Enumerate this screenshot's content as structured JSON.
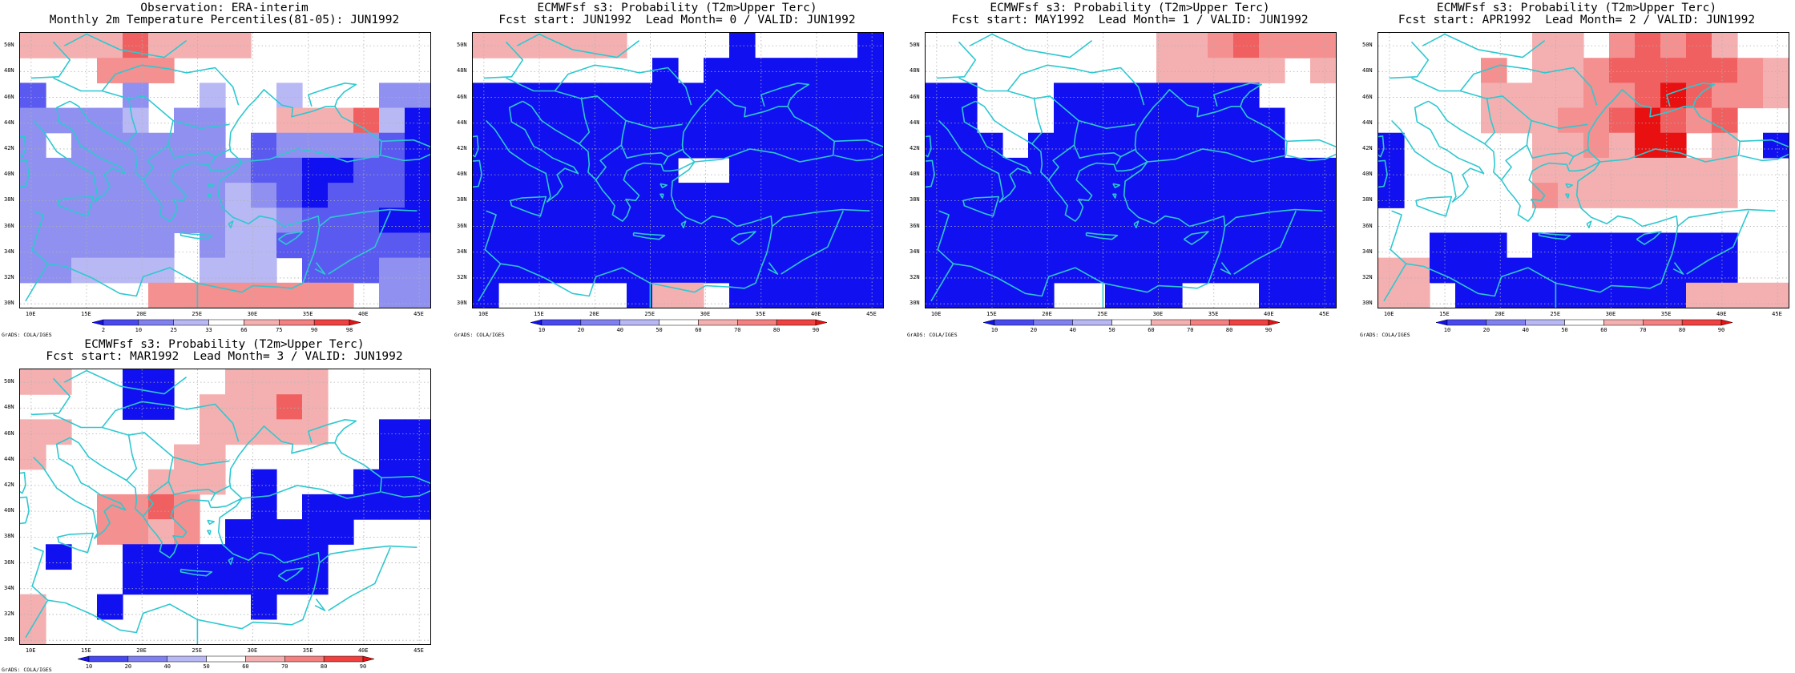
{
  "colors": {
    "coast": "#2ec8d0",
    "grid": "#b0b0b0",
    "blue_dark": "#1010f0",
    "blue_mid": "#5a5af0",
    "blue_light": "#9090f0",
    "blue_pale": "#b8b8f4",
    "red_pale": "#f4b0b0",
    "red_light": "#f49090",
    "red_mid": "#f06060",
    "red_dark": "#e81010"
  },
  "lat_labels": [
    "30N",
    "32N",
    "34N",
    "36N",
    "38N",
    "40N",
    "42N",
    "44N",
    "46N",
    "48N",
    "50N"
  ],
  "lon_labels": [
    "10E",
    "15E",
    "20E",
    "25E",
    "30E",
    "35E",
    "40E",
    "45E"
  ],
  "credit": "GrADS: COLA/IGES",
  "panels": [
    {
      "id": "obs",
      "title_line1": "Observation: ERA-interim",
      "title_line2": "Monthly 2m Temperature Percentiles(81-05): JUN1992",
      "colorbar_labels": [
        "2",
        "10",
        "25",
        "33",
        "66",
        "75",
        "90",
        "98"
      ],
      "colorbar_colors": [
        "#1010f0",
        "#4848f0",
        "#8080f0",
        "#b8b8f4",
        "#ffffff",
        "#f4b0b0",
        "#f48080",
        "#f04040",
        "#e81010"
      ],
      "cells": [
        [
          4,
          6,
          "red_light"
        ],
        [
          6,
          10,
          "red_mid"
        ],
        [
          5,
          6,
          "red_light"
        ],
        [
          10,
          14,
          "red_light"
        ],
        [
          18,
          24,
          "red_pale"
        ],
        [
          0,
          12,
          "red_pale"
        ],
        [
          14,
          20,
          "red_pale"
        ],
        [
          14,
          20,
          "white"
        ],
        [
          40,
          46,
          "red_light"
        ],
        [
          8,
          10,
          "white"
        ],
        [
          0,
          2,
          "white"
        ],
        [
          6,
          10,
          "blue_light"
        ],
        [
          6,
          10,
          "blue_pale"
        ],
        [
          10,
          14,
          "white"
        ],
        [
          14,
          18,
          "blue_pale"
        ],
        [
          20,
          24,
          "blue_light"
        ],
        [
          26,
          30,
          "blue_mid"
        ],
        [
          30,
          34,
          "blue_mid"
        ],
        [
          34,
          40,
          "red_pale"
        ],
        [
          36,
          42,
          "red_mid"
        ],
        [
          42,
          46,
          "blue_pale"
        ]
      ]
    },
    {
      "id": "lead0",
      "title_line1": "ECMWFsf s3: Probability (T2m>Upper Terc)",
      "title_line2": "Fcst start: JUN1992  Lead Month= 0 / VALID: JUN1992",
      "colorbar_labels": [
        "10",
        "20",
        "40",
        "50",
        "60",
        "70",
        "80",
        "90"
      ]
    },
    {
      "id": "lead1",
      "title_line1": "ECMWFsf s3: Probability (T2m>Upper Terc)",
      "title_line2": "Fcst start: MAY1992  Lead Month= 1 / VALID: JUN1992",
      "colorbar_labels": [
        "10",
        "20",
        "40",
        "50",
        "60",
        "70",
        "80",
        "90"
      ]
    },
    {
      "id": "lead2",
      "title_line1": "ECMWFsf s3: Probability (T2m>Upper Terc)",
      "title_line2": "Fcst start: APR1992  Lead Month= 2 / VALID: JUN1992",
      "colorbar_labels": [
        "10",
        "20",
        "40",
        "50",
        "60",
        "70",
        "80",
        "90"
      ]
    },
    {
      "id": "lead3",
      "title_line1": "ECMWFsf s3: Probability (T2m>Upper Terc)",
      "title_line2": "Fcst start: MAR1992  Lead Month= 3 / VALID: JUN1992",
      "colorbar_labels": [
        "10",
        "20",
        "40",
        "50",
        "60",
        "70",
        "80",
        "90"
      ]
    }
  ]
}
